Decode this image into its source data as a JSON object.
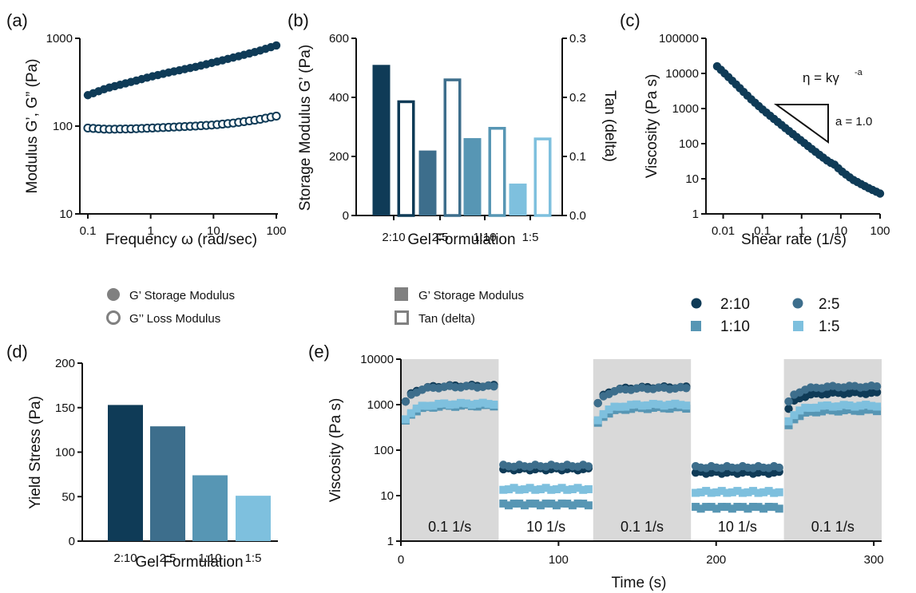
{
  "colors": {
    "c210": "#0f3b57",
    "c25": "#3d6e8c",
    "c110": "#5796b4",
    "c15": "#7ec0de",
    "grey": "#808080",
    "shade": "#d9d9d9"
  },
  "chart_data": [
    {
      "panel": "(a)",
      "type": "scatter",
      "xscale": "log",
      "yscale": "log",
      "xlim": [
        0.1,
        100
      ],
      "ylim": [
        10,
        1000
      ],
      "xticks": [
        "0.1",
        "1",
        "10",
        "100"
      ],
      "yticks": [
        "10",
        "100",
        "1000"
      ],
      "xlabel": "Frequency ω (rad/sec)",
      "ylabel": "Modulus  G’, G” (Pa)",
      "legend": [
        "G’ Storage Modulus",
        "G’’ Loss Modulus"
      ],
      "series": [
        {
          "name": "G’ Storage Modulus",
          "marker": "filled-circle",
          "x": [
            0.1,
            0.2,
            0.5,
            1,
            2,
            5,
            10,
            20,
            50,
            100
          ],
          "y": [
            225,
            270,
            320,
            365,
            410,
            470,
            530,
            600,
            710,
            830
          ]
        },
        {
          "name": "G’’ Loss Modulus",
          "marker": "open-circle",
          "x": [
            0.1,
            0.2,
            0.5,
            1,
            2,
            5,
            10,
            20,
            50,
            100
          ],
          "y": [
            95,
            92,
            93,
            95,
            97,
            100,
            103,
            108,
            118,
            130
          ]
        }
      ]
    },
    {
      "panel": "(b)",
      "type": "bar",
      "categories": [
        "2:10",
        "2:5",
        "1:10",
        "1:5"
      ],
      "xlabel": "Gel Formulation",
      "ylabel": "Storage Modulus G’ (Pa)",
      "ylabel_right": "Tan (delta)",
      "ylim": [
        0,
        600
      ],
      "ylim_right": [
        0,
        0.3
      ],
      "yticks": [
        "0",
        "200",
        "400",
        "600"
      ],
      "yticks_right": [
        "0.0",
        "0.1",
        "0.2",
        "0.3"
      ],
      "legend": [
        "G’ Storage Modulus",
        "Tan (delta)"
      ],
      "series": [
        {
          "name": "G’ Storage Modulus",
          "axis": "left",
          "style": "filled",
          "values": [
            510,
            220,
            262,
            108
          ]
        },
        {
          "name": "Tan (delta)",
          "axis": "right",
          "style": "open",
          "values": [
            0.195,
            0.232,
            0.15,
            0.132
          ]
        }
      ]
    },
    {
      "panel": "(c)",
      "type": "scatter",
      "xscale": "log",
      "yscale": "log",
      "xlim": [
        0.004,
        100
      ],
      "ylim": [
        1,
        100000
      ],
      "xticks": [
        "0.01",
        "0.1",
        "1",
        "10",
        "100"
      ],
      "yticks": [
        "1",
        "10",
        "100",
        "1000",
        "10000",
        "100000"
      ],
      "xlabel": "Shear rate (1/s)",
      "ylabel": "Viscosity (Pa s)",
      "equation": "η = kγ",
      "equation_exponent": "-a",
      "slope_label": "a = 1.0",
      "x": [
        0.007,
        0.01,
        0.02,
        0.05,
        0.1,
        0.2,
        0.5,
        1,
        2,
        5,
        7,
        10,
        20,
        50,
        100
      ],
      "y": [
        16000,
        11000,
        5200,
        1900,
        950,
        500,
        220,
        120,
        65,
        30,
        25,
        17,
        9.5,
        5.5,
        3.8
      ]
    },
    {
      "panel": "(d)",
      "type": "bar",
      "categories": [
        "2:10",
        "2:5",
        "1:10",
        "1:5"
      ],
      "values": [
        153,
        129,
        74,
        51
      ],
      "xlabel": "Gel Formulation",
      "ylabel": "Yield Stress (Pa)",
      "ylim": [
        0,
        200
      ],
      "yticks": [
        "0",
        "50",
        "100",
        "150",
        "200"
      ]
    },
    {
      "panel": "(e)",
      "type": "scatter",
      "yscale": "log",
      "xlim": [
        0,
        305
      ],
      "ylim": [
        1,
        10000
      ],
      "xticks": [
        "0",
        "100",
        "200",
        "300"
      ],
      "yticks": [
        "1",
        "10",
        "100",
        "1000",
        "10000"
      ],
      "xlabel": "Time (s)",
      "ylabel": "Viscosity (Pa s)",
      "legend": [
        "2:10",
        "2:5",
        "1:10",
        "1:5"
      ],
      "intervals": [
        {
          "start": 0,
          "end": 62,
          "label": "0.1 1/s",
          "shaded": true,
          "level": "high"
        },
        {
          "start": 62,
          "end": 122,
          "label": "10 1/s",
          "shaded": false,
          "level": "low"
        },
        {
          "start": 122,
          "end": 184,
          "label": "0.1 1/s",
          "shaded": true,
          "level": "high"
        },
        {
          "start": 184,
          "end": 243,
          "label": "10 1/s",
          "shaded": false,
          "level": "low"
        },
        {
          "start": 243,
          "end": 305,
          "label": "0.1 1/s",
          "shaded": true,
          "level": "high"
        }
      ],
      "series": [
        {
          "name": "2:10",
          "marker": "circle",
          "high_levels": [
            2600,
            2400,
            1800
          ],
          "low_levels": [
            38,
            32
          ]
        },
        {
          "name": "2:5",
          "marker": "circle",
          "high_levels": [
            2500,
            2300,
            2500
          ],
          "low_levels": [
            45,
            42
          ]
        },
        {
          "name": "1:10",
          "marker": "square",
          "high_levels": [
            950,
            850,
            750
          ],
          "low_levels": [
            6.5,
            5.5
          ]
        },
        {
          "name": "1:5",
          "marker": "square",
          "high_levels": [
            1050,
            1000,
            950
          ],
          "low_levels": [
            14,
            12
          ]
        }
      ]
    }
  ]
}
